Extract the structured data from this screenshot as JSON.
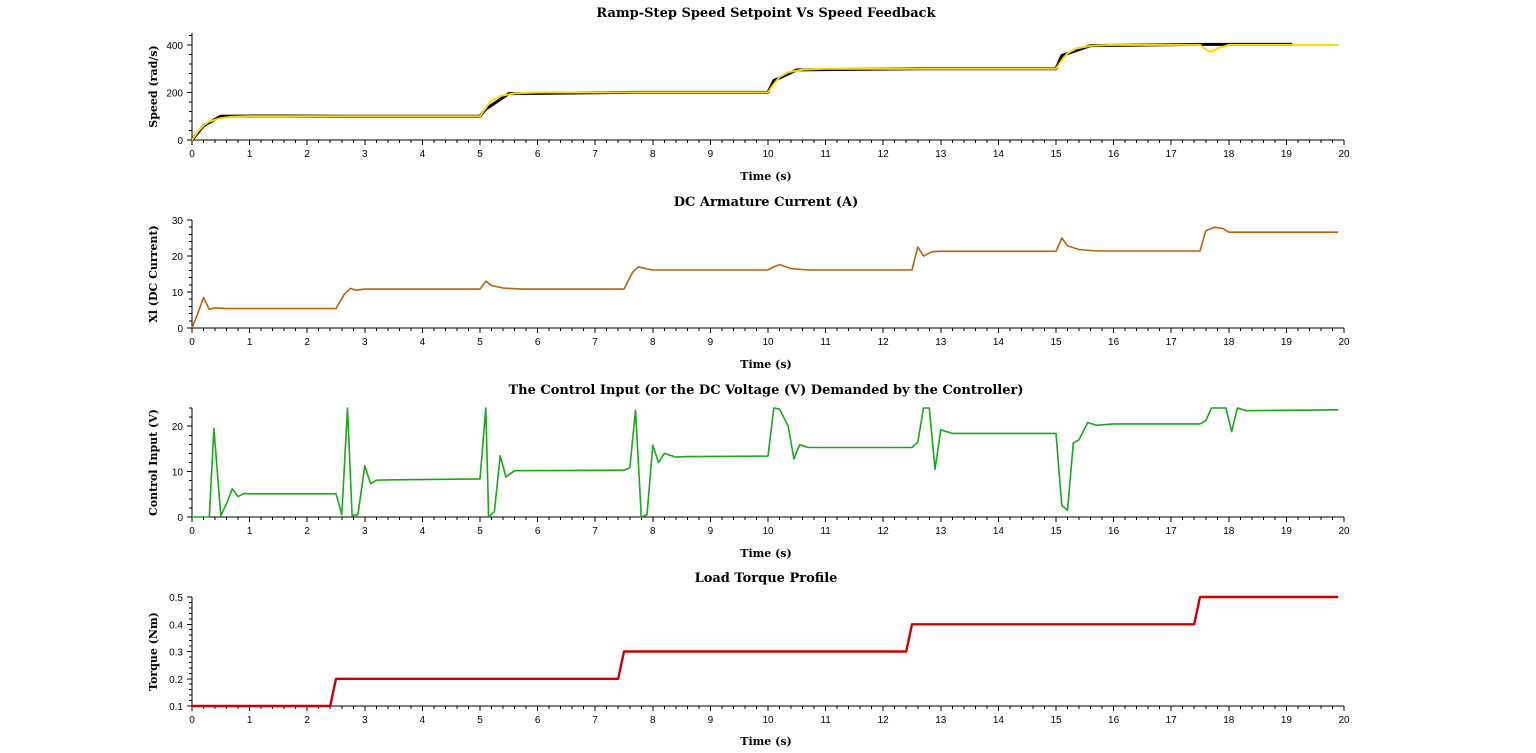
{
  "chart_data": [
    {
      "type": "line",
      "title": "Ramp-Step Speed Setpoint Vs Speed Feedback",
      "xlabel": "Time (s)",
      "ylabel": "Speed (rad/s)",
      "xlim": [
        0,
        20
      ],
      "ylim": [
        0,
        450
      ],
      "xticks": [
        0,
        1,
        2,
        3,
        4,
        5,
        6,
        7,
        8,
        9,
        10,
        11,
        12,
        13,
        14,
        15,
        16,
        17,
        18,
        19,
        20
      ],
      "yticks": [
        0,
        200,
        400
      ],
      "grid": false,
      "series": [
        {
          "color": "#000000",
          "x": [
            0,
            0.2,
            0.5,
            1.2,
            1.6,
            2.7,
            2.75,
            5,
            5.1,
            5.5,
            7.7,
            7.75,
            10,
            10.1,
            10.5,
            12.6,
            12.65,
            15,
            15.1,
            15.6,
            17.55,
            17.8,
            19.1
          ],
          "y": [
            0,
            60,
            100,
            101,
            101,
            100,
            100,
            100,
            130,
            195,
            200,
            200,
            200,
            250,
            295,
            300,
            300,
            300,
            355,
            397,
            402,
            402,
            402
          ]
        },
        {
          "color": "#FFD700",
          "x": [
            0,
            0.1,
            0.2,
            0.3,
            0.5,
            0.7,
            1,
            5,
            5.1,
            5.2,
            5.35,
            5.6,
            6,
            10,
            10.1,
            10.2,
            10.35,
            10.6,
            11,
            15,
            15.1,
            15.2,
            15.35,
            15.6,
            16,
            17.5,
            17.6,
            17.7,
            17.8,
            18,
            19.1,
            19.9
          ],
          "y": [
            0,
            35,
            62,
            78,
            92,
            98,
            100,
            100,
            135,
            165,
            185,
            196,
            200,
            200,
            235,
            265,
            285,
            296,
            300,
            300,
            335,
            365,
            385,
            396,
            400,
            400,
            380,
            370,
            385,
            400,
            400,
            400
          ]
        }
      ]
    },
    {
      "type": "line",
      "title": "DC Armature Current (A)",
      "xlabel": "Time (s)",
      "ylabel": "Xl (DC Current)",
      "xlim": [
        0,
        20
      ],
      "ylim": [
        0,
        30
      ],
      "xticks": [
        0,
        1,
        2,
        3,
        4,
        5,
        6,
        7,
        8,
        9,
        10,
        11,
        12,
        13,
        14,
        15,
        16,
        17,
        18,
        19,
        20
      ],
      "yticks": [
        0,
        10,
        20,
        30
      ],
      "grid": false,
      "series": [
        {
          "color": "#B8620C",
          "x": [
            0,
            0.1,
            0.2,
            0.3,
            0.4,
            0.5,
            0.6,
            2.5,
            2.65,
            2.75,
            2.85,
            3,
            5,
            5.1,
            5.2,
            5.4,
            5.7,
            7.5,
            7.65,
            7.75,
            7.9,
            8,
            10,
            10.1,
            10.2,
            10.4,
            10.7,
            12.5,
            12.6,
            12.7,
            12.85,
            13,
            15,
            15.1,
            15.2,
            15.4,
            15.7,
            17.5,
            17.6,
            17.75,
            17.9,
            18,
            19.9
          ],
          "y": [
            0,
            4,
            8.5,
            5.2,
            5.6,
            5.5,
            5.4,
            5.4,
            9.5,
            11,
            10.5,
            10.8,
            10.8,
            13,
            11.8,
            11.1,
            10.8,
            10.8,
            15.5,
            17,
            16.4,
            16.1,
            16.1,
            17,
            17.6,
            16.5,
            16.1,
            16.1,
            22.5,
            20,
            21.2,
            21.3,
            21.3,
            25,
            22.8,
            21.8,
            21.4,
            21.4,
            27,
            28,
            27.6,
            26.6,
            26.6
          ]
        }
      ]
    },
    {
      "type": "line",
      "title": "The Control Input (or the DC Voltage (V) Demanded by the Controller)",
      "xlabel": "Time (s)",
      "ylabel": "Control Input (V)",
      "xlim": [
        0,
        20
      ],
      "ylim": [
        0,
        24
      ],
      "xticks": [
        0,
        1,
        2,
        3,
        4,
        5,
        6,
        7,
        8,
        9,
        10,
        11,
        12,
        13,
        14,
        15,
        16,
        17,
        18,
        19,
        20
      ],
      "yticks": [
        0,
        10,
        20
      ],
      "grid": false,
      "series": [
        {
          "color": "#18A818",
          "x": [
            0,
            0.3,
            0.38,
            0.5,
            0.6,
            0.7,
            0.8,
            0.9,
            1,
            2.5,
            2.6,
            2.7,
            2.78,
            2.88,
            3,
            3.1,
            3.2,
            3.5,
            5,
            5.1,
            5.15,
            5.25,
            5.35,
            5.45,
            5.6,
            7.5,
            7.6,
            7.7,
            7.8,
            7.9,
            8,
            8.1,
            8.2,
            8.4,
            8.6,
            10,
            10.1,
            10.2,
            10.35,
            10.45,
            10.55,
            10.7,
            12.5,
            12.6,
            12.7,
            12.8,
            12.9,
            13,
            13.2,
            15,
            15.1,
            15.2,
            15.3,
            15.4,
            15.55,
            15.7,
            16,
            17.5,
            17.6,
            17.7,
            17.85,
            17.95,
            18.05,
            18.15,
            18.3,
            19.9
          ],
          "y": [
            0,
            0,
            19.5,
            0.3,
            3,
            6.2,
            4.5,
            5.2,
            5.1,
            5.1,
            0.5,
            24,
            0.3,
            0.5,
            11.3,
            7.3,
            8.1,
            8.2,
            8.4,
            24,
            0,
            1.2,
            13.5,
            8.8,
            10.2,
            10.3,
            10.8,
            23.5,
            0,
            0.5,
            15.8,
            12,
            14,
            13.2,
            13.3,
            13.4,
            24,
            23.8,
            20,
            12.8,
            15.9,
            15.3,
            15.3,
            16.5,
            24,
            24,
            10.5,
            19.2,
            18.4,
            18.4,
            2.5,
            1.5,
            16.3,
            17,
            20.8,
            20.2,
            20.5,
            20.5,
            21.2,
            24,
            24,
            24,
            18.8,
            24,
            23.4,
            23.6
          ]
        }
      ]
    },
    {
      "type": "line",
      "title": "Load Torque Profile",
      "xlabel": "Time (s)",
      "ylabel": "Torque (Nm)",
      "xlim": [
        0,
        20
      ],
      "ylim": [
        0.1,
        0.5
      ],
      "xticks": [
        0,
        1,
        2,
        3,
        4,
        5,
        6,
        7,
        8,
        9,
        10,
        11,
        12,
        13,
        14,
        15,
        16,
        17,
        18,
        19,
        20
      ],
      "yticks": [
        0.1,
        0.2,
        0.3,
        0.4,
        0.5
      ],
      "grid": false,
      "series": [
        {
          "color": "#CC0000",
          "x": [
            0,
            2.4,
            2.5,
            7.4,
            7.5,
            12.4,
            12.5,
            17.4,
            17.5,
            19.9
          ],
          "y": [
            0.1,
            0.1,
            0.2,
            0.2,
            0.3,
            0.3,
            0.4,
            0.4,
            0.5,
            0.5
          ]
        }
      ]
    }
  ]
}
